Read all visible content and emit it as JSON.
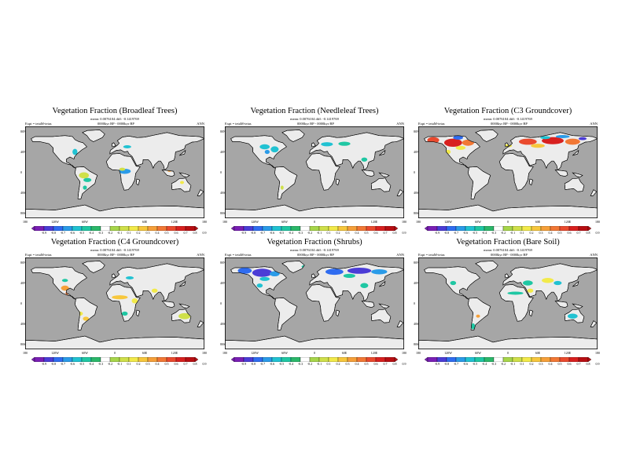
{
  "page_background": "#ffffff",
  "colors": {
    "ocean": "#a6a6a6",
    "land_no_change": "#ececec",
    "coastline": "#000000",
    "colorbar": [
      "#7a1fb5",
      "#4b3cd6",
      "#2f6cf0",
      "#2a9be8",
      "#21c2d2",
      "#1fc7a3",
      "#2bb86a",
      "#ffffff",
      "#a7d64a",
      "#cfe04a",
      "#f2ea4a",
      "#f7c73d",
      "#f6a03a",
      "#f27835",
      "#ea4a2e",
      "#d8201f",
      "#b80f13"
    ]
  },
  "panels": [
    {
      "id": "broadleaf",
      "title": "Vegetation Fraction (Broadleaf Trees)",
      "subtitle": "mean: 0.0076104 diff: -0.1419769",
      "expt": "Expt = tetaM-teias",
      "period": "0000kyr BP - 0000kyr BP",
      "season": "ANN",
      "lat_labels": [
        "80N",
        "40N",
        "0",
        "40S",
        "80S"
      ],
      "lon_labels": [
        "180",
        "120W",
        "60W",
        "0",
        "60E",
        "120E",
        "180"
      ],
      "colorbar_labels": [
        "-0.9",
        "-0.8",
        "-0.7",
        "-0.6",
        "-0.5",
        "-0.4",
        "-0.3",
        "-0.2",
        "-0.1",
        "0.1",
        "0.2",
        "0.3",
        "0.4",
        "0.5",
        "0.6",
        "0.7",
        "0.8",
        "0.9"
      ],
      "anomaly_pattern": "tropical forests, eastern North America, Europe"
    },
    {
      "id": "needleleaf",
      "title": "Vegetation Fraction (Needleleaf Trees)",
      "subtitle": "mean: 0.0076104 diff: -0.1419769",
      "expt": "Expt = tetaM-teias",
      "period": "0000kyr BP - 0000kyr BP",
      "season": "ANN",
      "lat_labels": [
        "80N",
        "40N",
        "0",
        "40S",
        "80S"
      ],
      "lon_labels": [
        "180",
        "120W",
        "60W",
        "0",
        "60E",
        "120E",
        "180"
      ],
      "colorbar_labels": [
        "-0.9",
        "-0.8",
        "-0.7",
        "-0.6",
        "-0.5",
        "-0.4",
        "-0.3",
        "-0.2",
        "-0.1",
        "0.1",
        "0.2",
        "0.3",
        "0.4",
        "0.5",
        "0.6",
        "0.7",
        "0.8",
        "0.9"
      ],
      "anomaly_pattern": "eastern North America, Europe, southern Asia"
    },
    {
      "id": "c3",
      "title": "Vegetation Fraction (C3 Groundcover)",
      "subtitle": "mean: 0.0076104 diff: -0.1419769",
      "expt": "Expt = tetaM-teias",
      "period": "0000kyr BP - 0000kyr BP",
      "season": "ANN",
      "lat_labels": [
        "80N",
        "40N",
        "0",
        "40S",
        "80S"
      ],
      "lon_labels": [
        "180",
        "120W",
        "60W",
        "0",
        "60E",
        "120E",
        "180"
      ],
      "colorbar_labels": [
        "-0.9",
        "-0.8",
        "-0.7",
        "-0.6",
        "-0.5",
        "-0.4",
        "-0.3",
        "-0.2",
        "-0.1",
        "0.1",
        "0.2",
        "0.3",
        "0.4",
        "0.5",
        "0.6",
        "0.7",
        "0.8",
        "0.9"
      ],
      "anomaly_pattern": "strong positive boreal North America and Eurasia"
    },
    {
      "id": "c4",
      "title": "Vegetation Fraction (C4 Groundcover)",
      "subtitle": "mean: 0.0076104 diff: -0.1419769",
      "expt": "Expt = tetaM-teias",
      "period": "0000kyr BP - 0000kyr BP",
      "season": "ANN",
      "lat_labels": [
        "80N",
        "40N",
        "0",
        "40S",
        "80S"
      ],
      "lon_labels": [
        "180",
        "120W",
        "60W",
        "0",
        "60E",
        "120E",
        "180"
      ],
      "colorbar_labels": [
        "-0.9",
        "-0.8",
        "-0.7",
        "-0.6",
        "-0.5",
        "-0.4",
        "-0.3",
        "-0.2",
        "-0.1",
        "0.1",
        "0.2",
        "0.3",
        "0.4",
        "0.5",
        "0.6",
        "0.7",
        "0.8",
        "0.9"
      ],
      "anomaly_pattern": "subtropical belts, Sahel, South America"
    },
    {
      "id": "shrubs",
      "title": "Vegetation Fraction (Shrubs)",
      "subtitle": "mean: 0.0076104 diff: -0.1419769",
      "expt": "Expt = tetaM-teias",
      "period": "0000kyr BP - 0000kyr BP",
      "season": "ANN",
      "lat_labels": [
        "80N",
        "40N",
        "0",
        "40S",
        "80S"
      ],
      "lon_labels": [
        "180",
        "120W",
        "60W",
        "0",
        "60E",
        "120E",
        "180"
      ],
      "colorbar_labels": [
        "-0.9",
        "-0.8",
        "-0.7",
        "-0.6",
        "-0.5",
        "-0.4",
        "-0.3",
        "-0.2",
        "-0.1",
        "0.1",
        "0.2",
        "0.3",
        "0.4",
        "0.5",
        "0.6",
        "0.7",
        "0.8",
        "0.9"
      ],
      "anomaly_pattern": "strong negative boreal North America and Eurasia"
    },
    {
      "id": "bare",
      "title": "Vegetation Fraction (Bare Soil)",
      "subtitle": "mean: 0.0076104 diff: -0.1419769",
      "expt": "Expt = tetaM-teias",
      "period": "0000kyr BP - 0000kyr BP",
      "season": "ANN",
      "lat_labels": [
        "80N",
        "40N",
        "0",
        "40S",
        "80S"
      ],
      "lon_labels": [
        "180",
        "120W",
        "60W",
        "0",
        "60E",
        "120E",
        "180"
      ],
      "colorbar_labels": [
        "-0.9",
        "-0.8",
        "-0.7",
        "-0.6",
        "-0.5",
        "-0.4",
        "-0.3",
        "-0.2",
        "-0.1",
        "0.1",
        "0.2",
        "0.3",
        "0.4",
        "0.5",
        "0.6",
        "0.7",
        "0.8",
        "0.9"
      ],
      "anomaly_pattern": "Sahara margins, central Asia, Patagonia"
    }
  ]
}
